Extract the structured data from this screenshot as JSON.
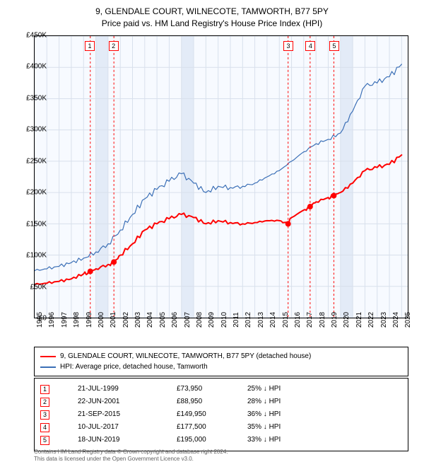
{
  "title": {
    "line1": "9, GLENDALE COURT, WILNECOTE, TAMWORTH, B77 5PY",
    "line2": "Price paid vs. HM Land Registry's House Price Index (HPI)",
    "fontsize": 12
  },
  "chart": {
    "type": "line",
    "background_color": "#f7faff",
    "grid_color": "#d8e0ec",
    "highlight_band_color": "#e3ebf7",
    "xlim": [
      1995,
      2025.5
    ],
    "ylim": [
      0,
      450000
    ],
    "ytick_step": 50000,
    "y_ticks": [
      {
        "v": 0,
        "label": "£0"
      },
      {
        "v": 50000,
        "label": "£50K"
      },
      {
        "v": 100000,
        "label": "£100K"
      },
      {
        "v": 150000,
        "label": "£150K"
      },
      {
        "v": 200000,
        "label": "£200K"
      },
      {
        "v": 250000,
        "label": "£250K"
      },
      {
        "v": 300000,
        "label": "£300K"
      },
      {
        "v": 350000,
        "label": "£350K"
      },
      {
        "v": 400000,
        "label": "£400K"
      },
      {
        "v": 450000,
        "label": "£450K"
      }
    ],
    "x_ticks": [
      1995,
      1996,
      1997,
      1998,
      1999,
      2000,
      2001,
      2002,
      2003,
      2004,
      2005,
      2006,
      2007,
      2008,
      2009,
      2010,
      2011,
      2012,
      2013,
      2014,
      2015,
      2016,
      2017,
      2018,
      2019,
      2020,
      2021,
      2022,
      2023,
      2024,
      2025
    ],
    "highlight_bands": [
      [
        2000,
        2001
      ],
      [
        2007,
        2008
      ],
      [
        2020,
        2021
      ]
    ],
    "marker_style": {
      "dot_radius": 4,
      "dot_fill": "#ff0000",
      "vline_color": "#ff0000",
      "vline_dash": "3,3",
      "vline_width": 1,
      "box_border": "#ff0000",
      "box_bg": "#ffffff"
    },
    "series": [
      {
        "id": "property",
        "label": "9, GLENDALE COURT, WILNECOTE, TAMWORTH, B77 5PY (detached house)",
        "color": "#ff0000",
        "width": 2,
        "data": [
          [
            1995,
            53000
          ],
          [
            1996,
            55000
          ],
          [
            1997,
            58000
          ],
          [
            1998,
            62000
          ],
          [
            1999,
            70000
          ],
          [
            1999.55,
            73950
          ],
          [
            2000,
            78000
          ],
          [
            2001,
            85000
          ],
          [
            2001.48,
            88950
          ],
          [
            2002,
            100000
          ],
          [
            2003,
            118000
          ],
          [
            2004,
            140000
          ],
          [
            2005,
            150000
          ],
          [
            2006,
            158000
          ],
          [
            2007,
            165000
          ],
          [
            2008,
            160000
          ],
          [
            2009,
            150000
          ],
          [
            2010,
            155000
          ],
          [
            2011,
            152000
          ],
          [
            2012,
            150000
          ],
          [
            2013,
            152000
          ],
          [
            2014,
            155000
          ],
          [
            2015,
            155000
          ],
          [
            2015.72,
            149950
          ],
          [
            2016,
            160000
          ],
          [
            2017,
            172000
          ],
          [
            2017.52,
            177500
          ],
          [
            2018,
            185000
          ],
          [
            2019,
            192000
          ],
          [
            2019.46,
            195000
          ],
          [
            2020,
            200000
          ],
          [
            2021,
            215000
          ],
          [
            2022,
            235000
          ],
          [
            2023,
            240000
          ],
          [
            2024,
            245000
          ],
          [
            2025,
            260000
          ]
        ]
      },
      {
        "id": "hpi",
        "label": "HPI: Average price, detached house, Tamworth",
        "color": "#3b6fb6",
        "width": 1.2,
        "data": [
          [
            1995,
            75000
          ],
          [
            1996,
            78000
          ],
          [
            1997,
            82000
          ],
          [
            1998,
            88000
          ],
          [
            1999,
            95000
          ],
          [
            2000,
            105000
          ],
          [
            2001,
            118000
          ],
          [
            2002,
            140000
          ],
          [
            2003,
            165000
          ],
          [
            2004,
            190000
          ],
          [
            2005,
            205000
          ],
          [
            2006,
            218000
          ],
          [
            2007,
            230000
          ],
          [
            2008,
            215000
          ],
          [
            2009,
            200000
          ],
          [
            2010,
            210000
          ],
          [
            2011,
            208000
          ],
          [
            2012,
            210000
          ],
          [
            2013,
            215000
          ],
          [
            2014,
            225000
          ],
          [
            2015,
            235000
          ],
          [
            2016,
            250000
          ],
          [
            2017,
            265000
          ],
          [
            2018,
            278000
          ],
          [
            2019,
            285000
          ],
          [
            2020,
            295000
          ],
          [
            2021,
            330000
          ],
          [
            2022,
            370000
          ],
          [
            2023,
            375000
          ],
          [
            2024,
            385000
          ],
          [
            2025,
            405000
          ]
        ]
      }
    ],
    "transactions": [
      {
        "n": "1",
        "year": 1999.55,
        "price": 73950,
        "date": "21-JUL-1999",
        "price_label": "£73,950",
        "diff": "25% ↓ HPI"
      },
      {
        "n": "2",
        "year": 2001.48,
        "price": 88950,
        "date": "22-JUN-2001",
        "price_label": "£88,950",
        "diff": "28% ↓ HPI"
      },
      {
        "n": "3",
        "year": 2015.72,
        "price": 149950,
        "date": "21-SEP-2015",
        "price_label": "£149,950",
        "diff": "36% ↓ HPI"
      },
      {
        "n": "4",
        "year": 2017.52,
        "price": 177500,
        "date": "10-JUL-2017",
        "price_label": "£177,500",
        "diff": "35% ↓ HPI"
      },
      {
        "n": "5",
        "year": 2019.46,
        "price": 195000,
        "date": "18-JUN-2019",
        "price_label": "£195,000",
        "diff": "33% ↓ HPI"
      }
    ]
  },
  "legend": {
    "border_color": "#000000"
  },
  "footer": {
    "line1": "Contains HM Land Registry data © Crown copyright and database right 2024.",
    "line2": "This data is licensed under the Open Government Licence v3.0."
  }
}
